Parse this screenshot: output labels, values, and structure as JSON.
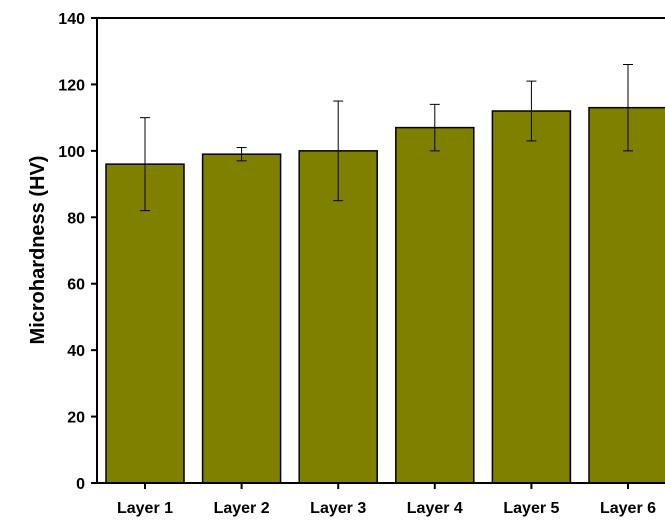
{
  "chart_data": {
    "type": "bar",
    "title": "",
    "xlabel": "",
    "ylabel": "Microhardness (HV)",
    "categories": [
      "Layer 1",
      "Layer 2",
      "Layer 3",
      "Layer 4",
      "Layer 5",
      "Layer 6"
    ],
    "values": [
      96,
      99,
      100,
      107,
      112,
      113
    ],
    "error_low": [
      82,
      97,
      85,
      100,
      103,
      100
    ],
    "error_high": [
      110,
      101,
      115,
      114,
      121,
      126
    ],
    "ylim": [
      0,
      140
    ],
    "yticks": [
      "0",
      "20",
      "40",
      "60",
      "80",
      "100",
      "120",
      "140"
    ],
    "grid": false,
    "bar_color": "#808000"
  }
}
